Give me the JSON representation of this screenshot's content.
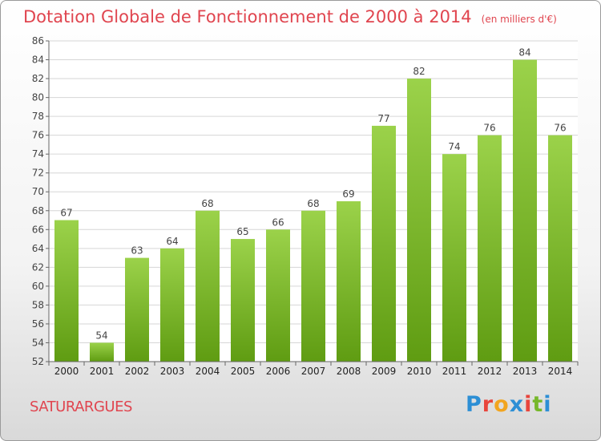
{
  "header": {
    "title": "Dotation Globale de Fonctionnement de 2000 à 2014",
    "subtitle": "(en milliers d'€)"
  },
  "commune": "SATURARGUES",
  "logo": {
    "letters": [
      "P",
      "r",
      "o",
      "x",
      "i",
      "t",
      "i"
    ],
    "colors": [
      "#2d8fd5",
      "#e8453c",
      "#f2a51f",
      "#2d8fd5",
      "#e8453c",
      "#76b82a",
      "#2d8fd5"
    ]
  },
  "chart_data": {
    "type": "bar",
    "categories": [
      "2000",
      "2001",
      "2002",
      "2003",
      "2004",
      "2005",
      "2006",
      "2007",
      "2008",
      "2009",
      "2010",
      "2011",
      "2012",
      "2013",
      "2014"
    ],
    "values": [
      67,
      54,
      63,
      64,
      68,
      65,
      66,
      68,
      69,
      77,
      82,
      74,
      76,
      84,
      76
    ],
    "title": "Dotation Globale de Fonctionnement de 2000 à 2014",
    "subtitle": "(en milliers d'€)",
    "ylim": [
      52,
      86
    ],
    "yticks": [
      52,
      54,
      56,
      58,
      60,
      62,
      64,
      66,
      68,
      70,
      72,
      74,
      76,
      78,
      80,
      82,
      84,
      86
    ],
    "grid": true,
    "bar_color": "#7fbf2a"
  }
}
